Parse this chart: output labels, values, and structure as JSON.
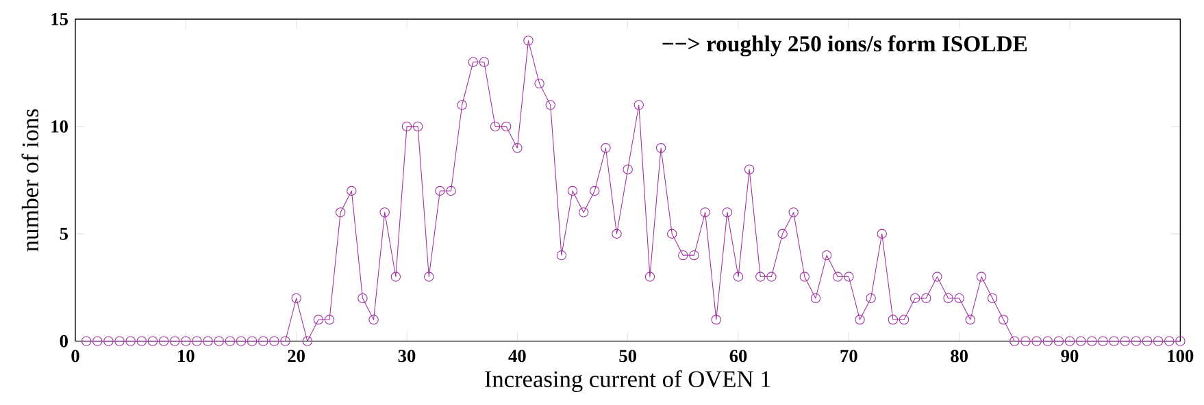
{
  "chart_data": {
    "type": "line",
    "xlabel": "Increasing current of OVEN 1",
    "ylabel": "number of ions",
    "annotations": [
      "−−> roughly 250 ions/s form ISOLDE"
    ],
    "x": [
      1,
      2,
      3,
      4,
      5,
      6,
      7,
      8,
      9,
      10,
      11,
      12,
      13,
      14,
      15,
      16,
      17,
      18,
      19,
      20,
      21,
      22,
      23,
      24,
      25,
      26,
      27,
      28,
      29,
      30,
      31,
      32,
      33,
      34,
      35,
      36,
      37,
      38,
      39,
      40,
      41,
      42,
      43,
      44,
      45,
      46,
      47,
      48,
      49,
      50,
      51,
      52,
      53,
      54,
      55,
      56,
      57,
      58,
      59,
      60,
      61,
      62,
      63,
      64,
      65,
      66,
      67,
      68,
      69,
      70,
      71,
      72,
      73,
      74,
      75,
      76,
      77,
      78,
      79,
      80,
      81,
      82,
      83,
      84,
      85,
      86,
      87,
      88,
      89,
      90,
      91,
      92,
      93,
      94,
      95,
      96,
      97,
      98,
      99,
      100
    ],
    "values": [
      0,
      0,
      0,
      0,
      0,
      0,
      0,
      0,
      0,
      0,
      0,
      0,
      0,
      0,
      0,
      0,
      0,
      0,
      0,
      2,
      0,
      1,
      1,
      6,
      7,
      2,
      1,
      6,
      3,
      10,
      10,
      3,
      7,
      7,
      11,
      13,
      13,
      10,
      10,
      9,
      14,
      12,
      11,
      4,
      7,
      6,
      7,
      9,
      5,
      8,
      11,
      3,
      9,
      5,
      4,
      4,
      6,
      1,
      6,
      3,
      8,
      3,
      3,
      5,
      6,
      3,
      2,
      4,
      3,
      3,
      1,
      2,
      5,
      1,
      1,
      2,
      2,
      3,
      2,
      2,
      1,
      3,
      2,
      1,
      0,
      0,
      0,
      0,
      0,
      0,
      0,
      0,
      0,
      0,
      0,
      0,
      0,
      0,
      0,
      0
    ],
    "color": "#a0309f",
    "marker": "circle",
    "line_style": "solid",
    "xlim": [
      0,
      100
    ],
    "ylim": [
      0,
      15
    ],
    "xticks": [
      0,
      10,
      20,
      30,
      40,
      50,
      60,
      70,
      80,
      90,
      100
    ],
    "yticks": [
      0,
      5,
      10,
      15
    ]
  }
}
